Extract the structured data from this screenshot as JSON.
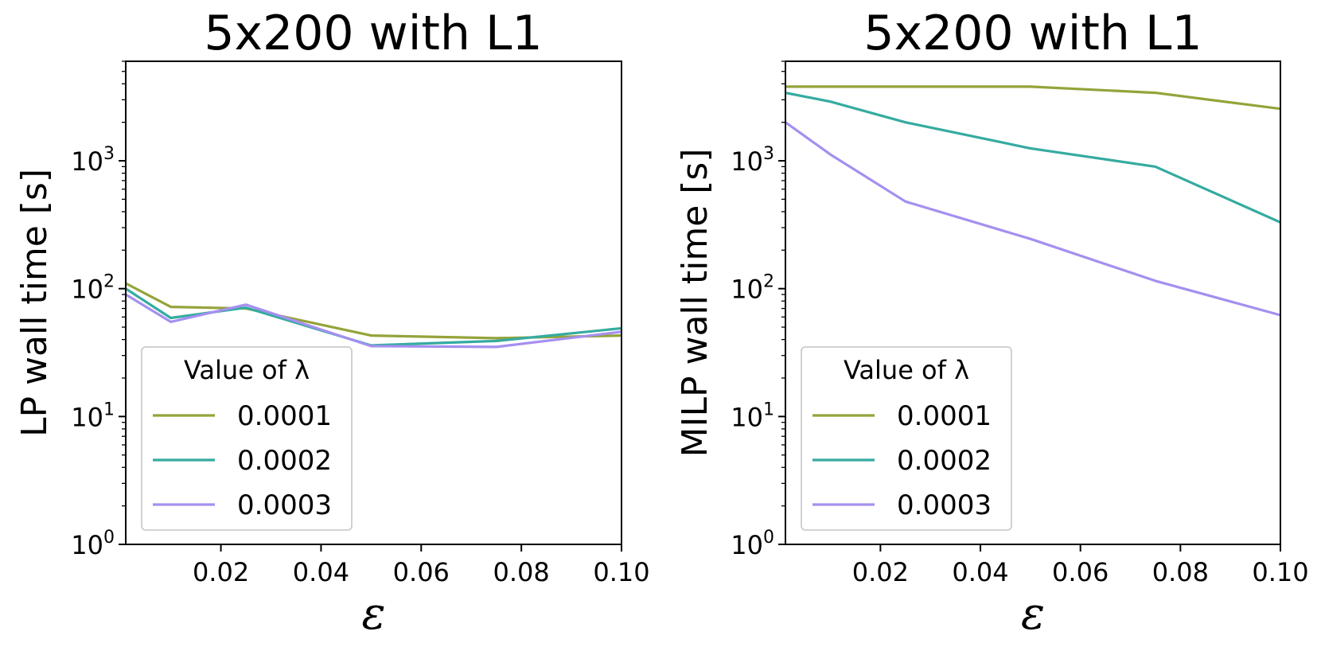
{
  "chart_data": [
    {
      "type": "line",
      "title": "5x200 with L1",
      "xlabel": "ε",
      "ylabel": "LP wall time [s]",
      "yscale": "log",
      "xlim": [
        0.001,
        0.1
      ],
      "ylim": [
        1,
        6000
      ],
      "x_ticks": [
        "0.02",
        "0.04",
        "0.06",
        "0.08",
        "0.10"
      ],
      "y_ticks": [
        {
          "base": "10",
          "exp": "0",
          "value": 1
        },
        {
          "base": "10",
          "exp": "1",
          "value": 10
        },
        {
          "base": "10",
          "exp": "2",
          "value": 100
        },
        {
          "base": "10",
          "exp": "3",
          "value": 1000
        }
      ],
      "legend": {
        "title": "Value of λ",
        "position": "lower-left"
      },
      "series": [
        {
          "name": "0.0001",
          "color": "#95a33a",
          "x": [
            0.001,
            0.01,
            0.025,
            0.05,
            0.075,
            0.1
          ],
          "y": [
            110,
            72,
            70,
            43,
            41,
            43
          ]
        },
        {
          "name": "0.0002",
          "color": "#35aba0",
          "x": [
            0.001,
            0.01,
            0.025,
            0.05,
            0.075,
            0.1
          ],
          "y": [
            100,
            59,
            71,
            36,
            39,
            49
          ]
        },
        {
          "name": "0.0003",
          "color": "#a58ff0",
          "x": [
            0.001,
            0.01,
            0.025,
            0.05,
            0.075,
            0.1
          ],
          "y": [
            90,
            55,
            75,
            35.5,
            35,
            46
          ]
        }
      ]
    },
    {
      "type": "line",
      "title": "5x200 with L1",
      "xlabel": "ε",
      "ylabel": "MILP wall time [s]",
      "yscale": "log",
      "xlim": [
        0.001,
        0.1
      ],
      "ylim": [
        1,
        6000
      ],
      "x_ticks": [
        "0.02",
        "0.04",
        "0.06",
        "0.08",
        "0.10"
      ],
      "y_ticks": [
        {
          "base": "10",
          "exp": "0",
          "value": 1
        },
        {
          "base": "10",
          "exp": "1",
          "value": 10
        },
        {
          "base": "10",
          "exp": "2",
          "value": 100
        },
        {
          "base": "10",
          "exp": "3",
          "value": 1000
        }
      ],
      "legend": {
        "title": "Value of λ",
        "position": "lower-left"
      },
      "series": [
        {
          "name": "0.0001",
          "color": "#95a33a",
          "x": [
            0.001,
            0.01,
            0.025,
            0.05,
            0.075,
            0.1
          ],
          "y": [
            3800,
            3800,
            3800,
            3800,
            3400,
            2550
          ]
        },
        {
          "name": "0.0002",
          "color": "#35aba0",
          "x": [
            0.001,
            0.01,
            0.025,
            0.05,
            0.075,
            0.1
          ],
          "y": [
            3400,
            2900,
            2000,
            1250,
            900,
            330
          ]
        },
        {
          "name": "0.0003",
          "color": "#a58ff0",
          "x": [
            0.001,
            0.01,
            0.025,
            0.05,
            0.075,
            0.1
          ],
          "y": [
            2000,
            1120,
            480,
            245,
            115,
            62
          ]
        }
      ]
    }
  ]
}
